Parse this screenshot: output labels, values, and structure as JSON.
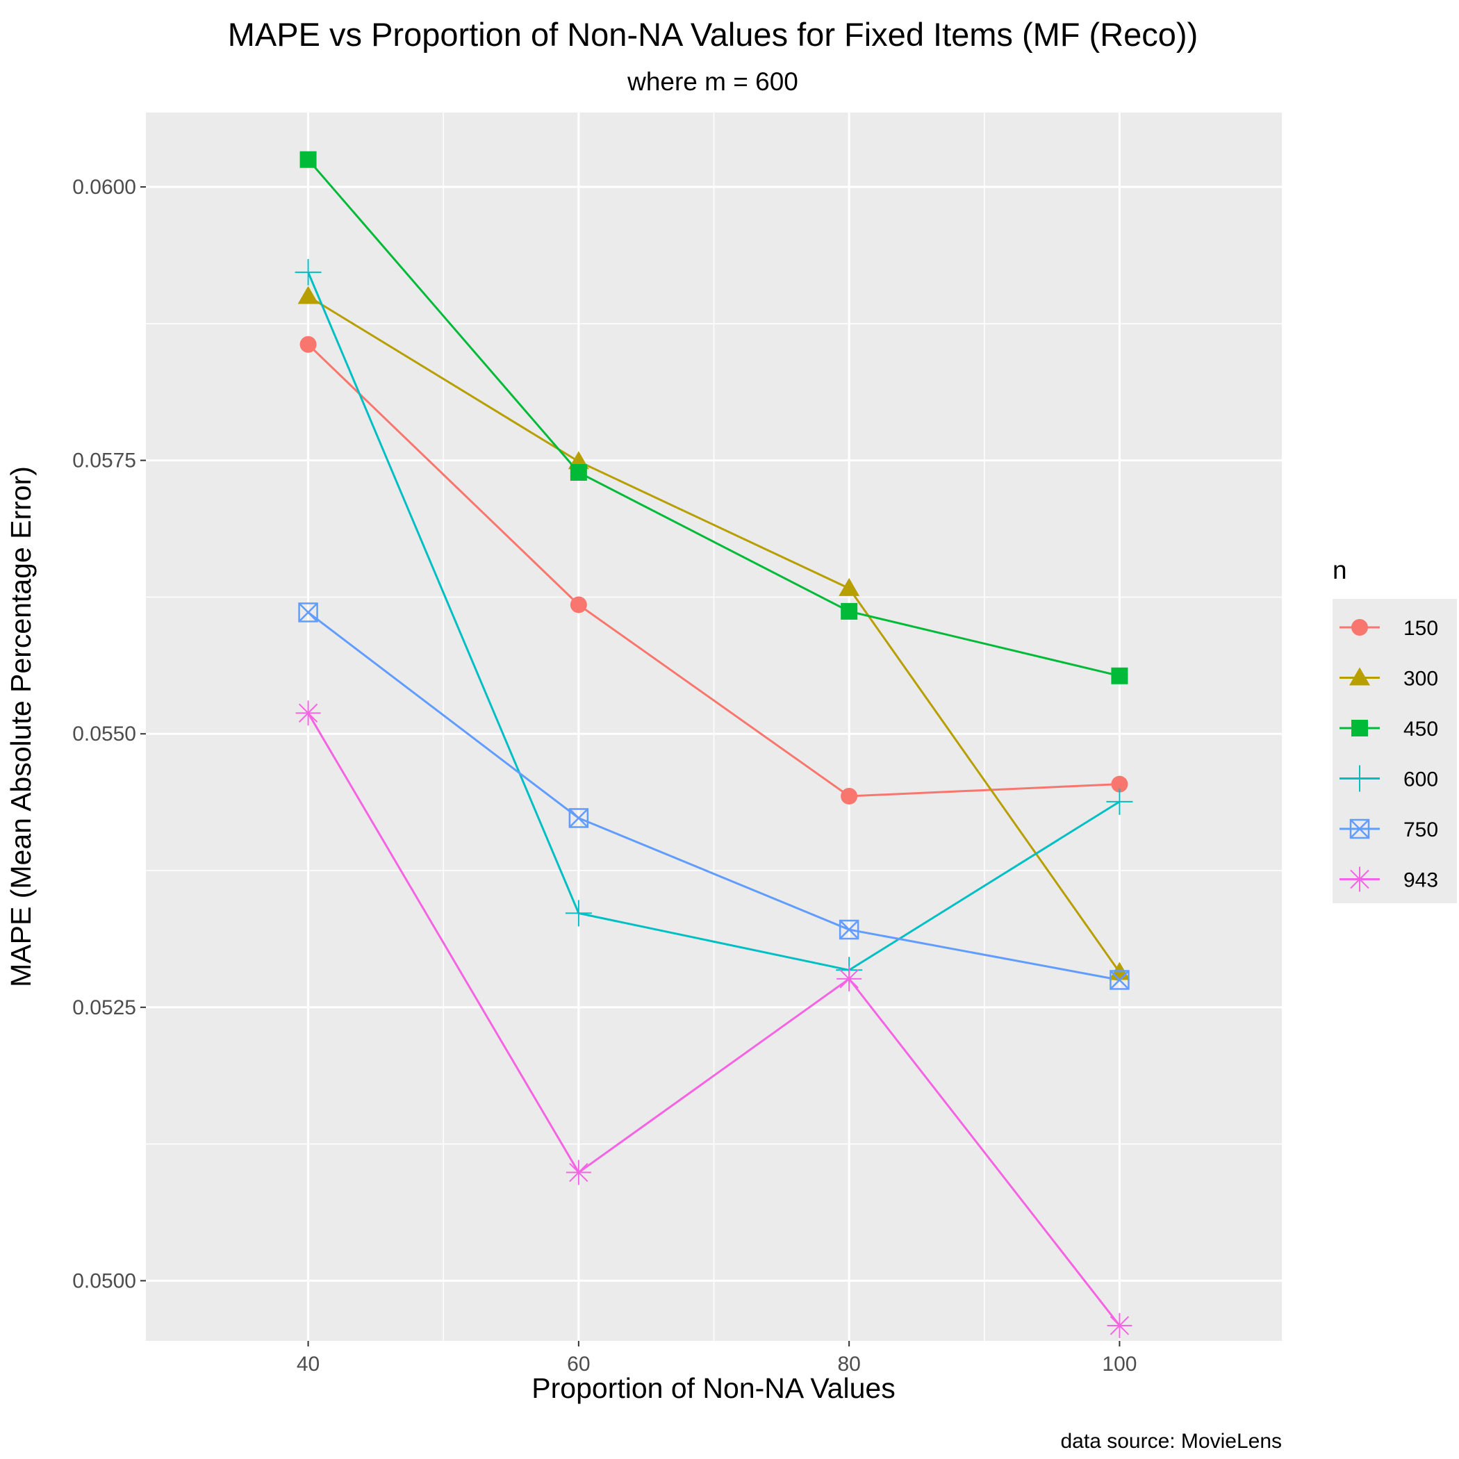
{
  "chart_data": {
    "type": "line",
    "title": "MAPE vs Proportion of Non-NA Values for Fixed Items (MF (Reco))",
    "subtitle": "where m = 600",
    "xlabel": "Proportion of Non-NA Values",
    "ylabel": "MAPE (Mean Absolute Percentage Error)",
    "caption": "data source: MovieLens",
    "x": [
      40,
      60,
      80,
      100
    ],
    "x_ticks": [
      "40",
      "60",
      "80",
      "100"
    ],
    "y_ticks": [
      "0.0500",
      "0.0525",
      "0.0550",
      "0.0575",
      "0.0600"
    ],
    "xlim": [
      28,
      112
    ],
    "ylim": [
      0.04945,
      0.06068
    ],
    "grid": true,
    "legend_title": "n",
    "legend_position": "right",
    "series": [
      {
        "name": "150",
        "color": "#F8766D",
        "shape": "circle",
        "values": [
          0.05856,
          0.05618,
          0.05443,
          0.05454
        ]
      },
      {
        "name": "300",
        "color": "#B79F00",
        "shape": "triangle",
        "values": [
          0.059,
          0.05749,
          0.05633,
          0.05282
        ]
      },
      {
        "name": "450",
        "color": "#00BA38",
        "shape": "square",
        "values": [
          0.06025,
          0.05739,
          0.05612,
          0.05553
        ]
      },
      {
        "name": "600",
        "color": "#00BFC4",
        "shape": "plus",
        "values": [
          0.05922,
          0.05336,
          0.05284,
          0.05438
        ]
      },
      {
        "name": "750",
        "color": "#619CFF",
        "shape": "square-x",
        "values": [
          0.05611,
          0.05423,
          0.05321,
          0.05275
        ]
      },
      {
        "name": "943",
        "color": "#F564E3",
        "shape": "asterisk",
        "values": [
          0.05519,
          0.05099,
          0.05276,
          0.04959
        ]
      }
    ]
  }
}
